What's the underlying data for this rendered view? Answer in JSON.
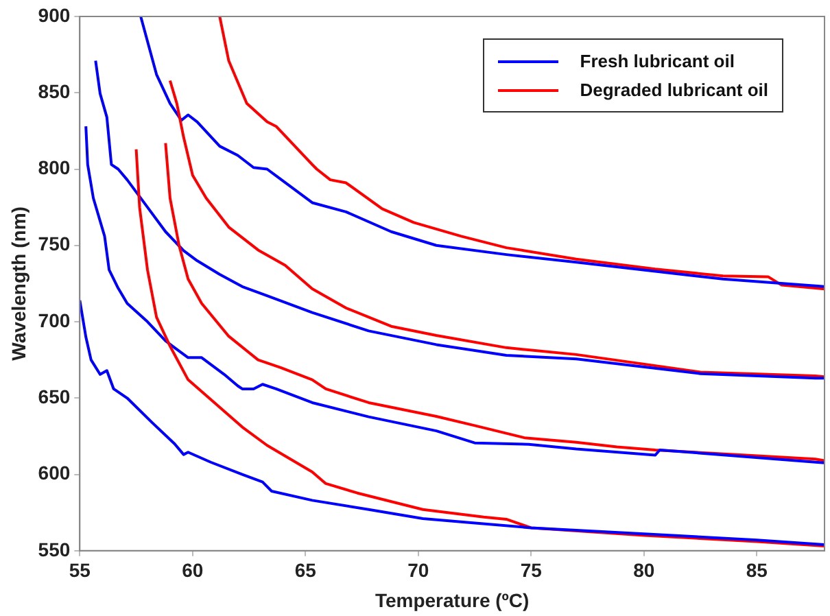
{
  "chart_data": {
    "type": "line",
    "xlabel": "Temperature (ºC)",
    "ylabel": "Wavelength (nm)",
    "xlim": [
      55,
      88
    ],
    "ylim": [
      550,
      900
    ],
    "xticks": [
      55,
      60,
      65,
      70,
      75,
      80,
      85
    ],
    "yticks": [
      550,
      600,
      650,
      700,
      750,
      800,
      850,
      900
    ],
    "grid": false,
    "legend": "top right",
    "marker": "none",
    "line_style": "solid",
    "series": [
      {
        "name": "Fresh lubricant oil",
        "color": "#0000ff",
        "x": [
          55,
          55.27,
          55.5,
          55.9,
          56.2,
          56.5,
          57.1,
          58.2,
          59.2,
          59.6,
          59.8,
          60.8,
          62.2,
          63.1,
          63.5,
          65.3,
          67.8,
          70.2,
          75,
          80,
          85,
          88
        ],
        "values": [
          714,
          690,
          675,
          665.5,
          668,
          656,
          650,
          634,
          620,
          613,
          614.5,
          608,
          600,
          595,
          589,
          583,
          577,
          571,
          565,
          561,
          557,
          554
        ]
      },
      {
        "name": "Degraded lubricant oil",
        "color": "#ff0000",
        "x": [
          57.5,
          57.65,
          58,
          58.4,
          59,
          59.8,
          61.2,
          62.2,
          63.3,
          65.3,
          65.9,
          67.3,
          70.2,
          72.9,
          73.9,
          75,
          80,
          85,
          88
        ],
        "values": [
          813,
          775,
          734,
          703,
          684,
          662,
          644,
          631,
          619,
          601.6,
          594,
          587.8,
          577,
          572,
          570.6,
          565,
          560,
          556,
          553
        ]
      },
      {
        "color": "#0000ff",
        "x": [
          55.27,
          55.35,
          55.6,
          56.1,
          56.3,
          56.7,
          57.1,
          58,
          58.8,
          59.2,
          59.8,
          60.4,
          61.4,
          62,
          62.2,
          62.7,
          63.1,
          63.7,
          65.3,
          67.8,
          70.8,
          72.5,
          74.9,
          77,
          80.5,
          80.7,
          87.6,
          88
        ],
        "values": [
          828,
          803,
          781,
          756,
          734,
          722,
          712,
          700,
          687.5,
          683,
          676.5,
          676.5,
          665.5,
          658,
          656,
          656,
          659,
          656,
          647,
          637.7,
          628.5,
          620.6,
          619.7,
          616.6,
          612.6,
          616,
          608,
          607.5
        ]
      },
      {
        "color": "#ff0000",
        "x": [
          58.8,
          59,
          59.4,
          59.8,
          60.4,
          61.6,
          62.9,
          63.9,
          65.3,
          65.9,
          67.8,
          70.8,
          72.5,
          74.7,
          77,
          78.8,
          80.5,
          87.6,
          88
        ],
        "values": [
          817,
          781,
          750,
          728,
          712,
          690.5,
          675,
          670,
          662,
          656,
          647,
          638,
          632,
          624,
          621,
          618,
          616,
          610,
          609
        ]
      },
      {
        "color": "#0000ff",
        "x": [
          55.7,
          55.9,
          56.2,
          56.4,
          56.7,
          57.1,
          58,
          58.8,
          59.6,
          60.2,
          61.2,
          62.2,
          63.3,
          65.3,
          67.8,
          70.8,
          73.9,
          77,
          82.5,
          87.6,
          88
        ],
        "values": [
          871,
          849.5,
          834,
          803,
          800,
          793,
          775,
          759,
          746.6,
          740,
          731,
          723,
          717,
          706,
          694,
          685,
          678,
          675.6,
          666,
          663,
          663
        ]
      },
      {
        "color": "#ff0000",
        "x": [
          59,
          59.3,
          59.6,
          60,
          60.6,
          61.6,
          62.9,
          64.1,
          65.3,
          66.8,
          68.8,
          70.8,
          73.9,
          77,
          82.5,
          87.6,
          88
        ],
        "values": [
          858,
          843,
          821,
          796,
          781,
          762,
          747,
          737,
          721.6,
          709,
          697,
          691,
          683,
          678.5,
          667,
          664.5,
          664
        ]
      },
      {
        "color": "#0000ff",
        "x": [
          57.7,
          58.4,
          59,
          59.5,
          59.8,
          60.2,
          61.2,
          62,
          62.7,
          63.3,
          65.3,
          66.8,
          68.8,
          70.8,
          73.9,
          77,
          80.5,
          83.5,
          87.6,
          88
        ],
        "values": [
          900,
          862,
          843,
          832,
          835.5,
          831,
          815,
          809,
          801,
          800,
          778,
          772,
          759,
          750,
          744,
          739,
          733,
          728,
          723.5,
          723
        ]
      },
      {
        "color": "#ff0000",
        "x": [
          61.2,
          61.6,
          62.4,
          63.3,
          63.7,
          65.3,
          65.5,
          66.1,
          66.8,
          68.4,
          69.8,
          71.9,
          73.9,
          77,
          80.5,
          83.5,
          85.5,
          86.1,
          87.6,
          88
        ],
        "values": [
          900,
          871,
          843,
          831,
          828,
          803,
          800,
          793,
          791,
          774,
          765,
          756,
          748.5,
          741,
          734.5,
          730,
          729.5,
          724,
          722,
          721.5
        ]
      }
    ]
  }
}
